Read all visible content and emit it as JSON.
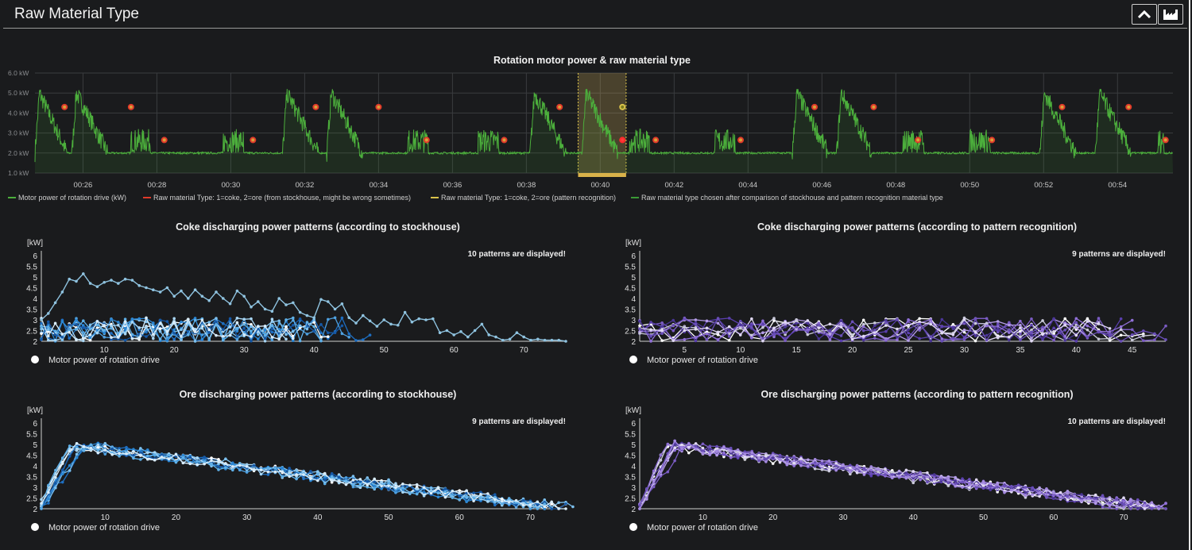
{
  "header": {
    "title": "Raw Material Type",
    "collapse_icon": "chevron-up-icon",
    "chart_icon": "factory-icon"
  },
  "colors": {
    "background": "#1a1b1d",
    "motor_green": "#4caf3c",
    "stockhouse_red": "#e03a2a",
    "pattern_yellow": "#d9c24a",
    "chosen_green": "#3a9a35",
    "coke_stock_blue": "#8fc3e0",
    "coke_pattern_purple": "#7b5cc4",
    "ore_stock_blue": "#2f7fc9",
    "ore_pattern_purple": "#6a4fb8"
  },
  "chart_data": [
    {
      "id": "main",
      "type": "line",
      "title": "Rotation motor power & raw material type",
      "y_ticks": [
        "1.0 kW",
        "2.0 kW",
        "3.0 kW",
        "4.0 kW",
        "5.0 kW",
        "6.0 kW"
      ],
      "ylim": [
        1,
        6
      ],
      "x_ticks": [
        "00:26",
        "00:28",
        "00:30",
        "00:32",
        "00:34",
        "00:36",
        "00:38",
        "00:40",
        "00:42",
        "00:44",
        "00:46",
        "00:48",
        "00:50",
        "00:52",
        "00:54"
      ],
      "xlim_minutes": [
        24.7,
        55.5
      ],
      "highlight_range_minutes": [
        39.4,
        40.7
      ],
      "legend": [
        "Motor power of rotation drive (kW)",
        "Raw material Type: 1=coke, 2=ore (from stockhouse, might be wrong sometimes)",
        "Raw material Type: 1=coke, 2=ore (pattern recognition)",
        "Raw material type chosen after comparison of stockhouse and pattern recognition material type"
      ],
      "cycles": [
        {
          "start": 24.7,
          "type": "ore"
        },
        {
          "start": 25.7,
          "type": "ore"
        },
        {
          "start": 27.3,
          "type": "coke"
        },
        {
          "start": 29.8,
          "type": "coke"
        },
        {
          "start": 31.4,
          "type": "ore"
        },
        {
          "start": 32.6,
          "type": "ore"
        },
        {
          "start": 34.8,
          "type": "coke"
        },
        {
          "start": 36.7,
          "type": "coke"
        },
        {
          "start": 38.1,
          "type": "ore"
        },
        {
          "start": 39.5,
          "type": "ore"
        },
        {
          "start": 40.8,
          "type": "coke"
        },
        {
          "start": 43.1,
          "type": "coke"
        },
        {
          "start": 45.2,
          "type": "ore"
        },
        {
          "start": 46.4,
          "type": "ore"
        },
        {
          "start": 48.2,
          "type": "coke"
        },
        {
          "start": 50.0,
          "type": "coke"
        },
        {
          "start": 51.9,
          "type": "ore"
        },
        {
          "start": 53.4,
          "type": "ore"
        },
        {
          "start": 55.1,
          "type": "coke"
        }
      ],
      "markers": [
        {
          "t": 25.5,
          "v": 4.3,
          "kind": "ore"
        },
        {
          "t": 27.3,
          "v": 4.3,
          "kind": "ore"
        },
        {
          "t": 28.2,
          "v": 2.65,
          "kind": "coke"
        },
        {
          "t": 30.6,
          "v": 2.65,
          "kind": "coke"
        },
        {
          "t": 32.3,
          "v": 4.3,
          "kind": "ore"
        },
        {
          "t": 34.0,
          "v": 4.3,
          "kind": "ore"
        },
        {
          "t": 35.3,
          "v": 2.65,
          "kind": "coke"
        },
        {
          "t": 37.4,
          "v": 2.65,
          "kind": "coke"
        },
        {
          "t": 38.9,
          "v": 4.3,
          "kind": "ore"
        },
        {
          "t": 40.6,
          "v": 4.3,
          "kind": "pattern"
        },
        {
          "t": 40.6,
          "v": 2.65,
          "kind": "stockhouse"
        },
        {
          "t": 41.5,
          "v": 2.65,
          "kind": "coke"
        },
        {
          "t": 43.8,
          "v": 2.65,
          "kind": "coke"
        },
        {
          "t": 45.8,
          "v": 4.3,
          "kind": "ore"
        },
        {
          "t": 47.4,
          "v": 4.3,
          "kind": "ore"
        },
        {
          "t": 48.6,
          "v": 2.65,
          "kind": "coke"
        },
        {
          "t": 50.6,
          "v": 2.65,
          "kind": "coke"
        },
        {
          "t": 52.5,
          "v": 4.3,
          "kind": "ore"
        },
        {
          "t": 54.3,
          "v": 4.3,
          "kind": "ore"
        },
        {
          "t": 55.3,
          "v": 2.65,
          "kind": "coke"
        }
      ]
    },
    {
      "id": "coke_stock",
      "type": "line",
      "title": "Coke discharging power patterns (according to stockhouse)",
      "ylabel": "[kW]",
      "y_ticks": [
        "2",
        "2.5",
        "3",
        "3.5",
        "4",
        "4.5",
        "5",
        "5.5",
        "6"
      ],
      "ylim": [
        2,
        6
      ],
      "x_ticks": [
        "10",
        "20",
        "30",
        "40",
        "50",
        "60",
        "70"
      ],
      "xlim": [
        1,
        76
      ],
      "note": "10 patterns are displayed!",
      "legend": "Motor power of rotation drive",
      "highlight_series": {
        "name": "pattern-1",
        "values": [
          3.0,
          3.3,
          3.8,
          4.3,
          4.9,
          4.8,
          5.15,
          4.7,
          4.55,
          4.75,
          4.85,
          4.7,
          4.9,
          4.85,
          4.6,
          4.5,
          4.4,
          4.3,
          4.5,
          4.1,
          4.35,
          4.0,
          4.4,
          4.1,
          3.9,
          4.3,
          4.0,
          3.75,
          4.35,
          4.1,
          3.6,
          3.85,
          3.5,
          3.4,
          4.0,
          3.7,
          3.8,
          3.35,
          3.2,
          3.1,
          3.95,
          3.85,
          3.5,
          3.75,
          3.1,
          2.85,
          3.2,
          2.95,
          2.7,
          3.0,
          2.8,
          2.75,
          3.35,
          2.9,
          3.05,
          3.0,
          3.05,
          2.4,
          2.5,
          2.3,
          2.45,
          2.2,
          2.5,
          2.8,
          2.3,
          2.2,
          2.05,
          2.1,
          2.4,
          2.2,
          2.05,
          2.1,
          2.05,
          2.05,
          2.05,
          2.0
        ]
      },
      "noise_series_count": 9,
      "noise_lengths": [
        48,
        45,
        42,
        40,
        38,
        36,
        44,
        41,
        37
      ],
      "noise_range": [
        2.0,
        3.1
      ]
    },
    {
      "id": "coke_pattern",
      "type": "line",
      "title": "Coke discharging power patterns (according to pattern recognition)",
      "ylabel": "[kW]",
      "y_ticks": [
        "2",
        "2.5",
        "3",
        "3.5",
        "4",
        "4.5",
        "5",
        "5.5",
        "6"
      ],
      "ylim": [
        2,
        6
      ],
      "x_ticks": [
        "5",
        "10",
        "15",
        "20",
        "25",
        "30",
        "35",
        "40",
        "45"
      ],
      "xlim": [
        1,
        48
      ],
      "note": "9 patterns are displayed!",
      "legend": "Motor power of rotation drive",
      "noise_series_count": 9,
      "noise_lengths": [
        48,
        46,
        44,
        42,
        47,
        45,
        40,
        43,
        48
      ],
      "noise_range": [
        2.0,
        3.1
      ]
    },
    {
      "id": "ore_stock",
      "type": "line",
      "title": "Ore discharging power patterns (according to stockhouse)",
      "ylabel": "[kW]",
      "y_ticks": [
        "2",
        "2.5",
        "3",
        "3.5",
        "4",
        "4.5",
        "5",
        "5.5",
        "6"
      ],
      "ylim": [
        2,
        6
      ],
      "x_ticks": [
        "10",
        "20",
        "30",
        "40",
        "50",
        "60",
        "70"
      ],
      "xlim": [
        1,
        75
      ],
      "note": "9 patterns are displayed!",
      "legend": "Motor power of rotation drive",
      "ore_series_count": 9
    },
    {
      "id": "ore_pattern",
      "type": "line",
      "title": "Ore discharging power patterns (according to pattern recognition)",
      "ylabel": "[kW]",
      "y_ticks": [
        "2",
        "2.5",
        "3",
        "3.5",
        "4",
        "4.5",
        "5",
        "5.5",
        "6"
      ],
      "ylim": [
        2,
        6
      ],
      "x_ticks": [
        "10",
        "20",
        "30",
        "40",
        "50",
        "60",
        "70"
      ],
      "xlim": [
        1,
        76
      ],
      "note": "10 patterns are displayed!",
      "legend": "Motor power of rotation drive",
      "ore_series_count": 10
    }
  ]
}
